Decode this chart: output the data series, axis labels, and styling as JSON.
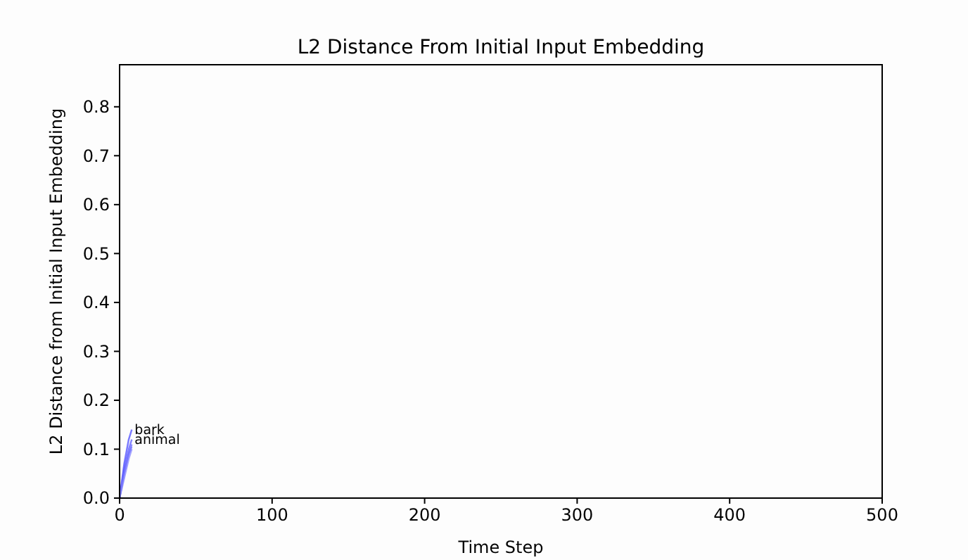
{
  "chart_data": {
    "type": "line",
    "title": "L2 Distance From Initial Input Embedding",
    "xlabel": "Time Step",
    "ylabel": "L2 Distance from Initial Input Embedding",
    "xlim": [
      0,
      500
    ],
    "xticks": [
      0,
      100,
      200,
      300,
      400,
      500
    ],
    "ylim": [
      0,
      0.886
    ],
    "yticks": [
      {
        "value": 0,
        "label": "0.0"
      },
      0.1,
      0.2,
      0.3,
      0.4,
      0.5,
      0.6,
      0.7,
      0.8
    ],
    "grid": false,
    "marker": "none",
    "line_style": "solid",
    "series": [
      {
        "name": "bark",
        "color": "#4040ff",
        "x": [
          0,
          3,
          6,
          8
        ],
        "values": [
          0,
          0.07,
          0.12,
          0.14
        ]
      },
      {
        "name": "animal",
        "color": "#5050ff",
        "x": [
          0,
          3,
          6,
          8
        ],
        "values": [
          0,
          0.06,
          0.1,
          0.12
        ]
      },
      {
        "color": "#6060ff",
        "x": [
          0,
          3,
          6,
          8
        ],
        "values": [
          0,
          0.05,
          0.09,
          0.11
        ]
      },
      {
        "color": "#7070ff",
        "x": [
          0,
          3,
          6,
          8
        ],
        "values": [
          0,
          0.05,
          0.09,
          0.105
        ]
      },
      {
        "color": "#8080ff",
        "x": [
          0,
          3,
          6,
          8
        ],
        "values": [
          0,
          0.04,
          0.08,
          0.1
        ]
      }
    ]
  }
}
